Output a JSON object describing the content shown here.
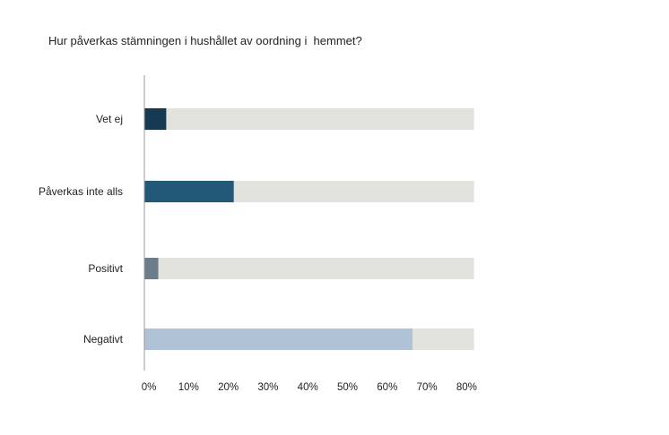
{
  "chart_data": {
    "type": "bar",
    "orientation": "horizontal",
    "title": "Hur påverkas stämningen i hushållet av oordning i  hemmet?",
    "categories": [
      "Vet ej",
      "Påverkas inte alls",
      "Positivt",
      "Negativt"
    ],
    "values": [
      5.5,
      22.5,
      3.5,
      67.5
    ],
    "bar_colors": [
      "#163a52",
      "#225878",
      "#6b7c8a",
      "#b0c2d6"
    ],
    "track_color": "#e3e3de",
    "xlim": [
      0,
      83
    ],
    "xticks": [
      0,
      10,
      20,
      30,
      40,
      50,
      60,
      70,
      80
    ],
    "tick_labels": [
      "0%",
      "10%",
      "20%",
      "30%",
      "40%",
      "50%",
      "60%",
      "70%",
      "80%"
    ],
    "grid": false,
    "xlabel": "",
    "ylabel": ""
  }
}
